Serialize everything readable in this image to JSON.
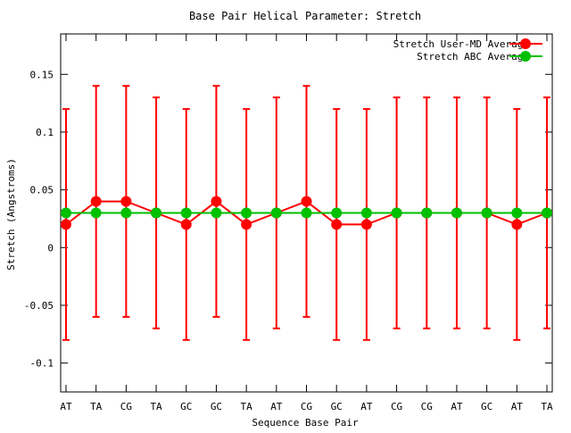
{
  "chart_data": {
    "type": "line",
    "title": "Base Pair Helical Parameter: Stretch",
    "xlabel": "Sequence Base Pair",
    "ylabel": "Stretch (Angstroms)",
    "categories": [
      "AT",
      "TA",
      "CG",
      "TA",
      "GC",
      "GC",
      "TA",
      "AT",
      "CG",
      "GC",
      "AT",
      "CG",
      "CG",
      "AT",
      "GC",
      "AT",
      "TA"
    ],
    "ylim": [
      -0.125,
      0.185
    ],
    "yticks": [
      -0.1,
      -0.05,
      0,
      0.05,
      0.1,
      0.15
    ],
    "ytick_labels": [
      "-0.1",
      "-0.05",
      "0",
      "0.05",
      "0.1",
      "0.15"
    ],
    "grid": false,
    "legend_position": "top-right",
    "series": [
      {
        "name": "Stretch User-MD Average",
        "color": "#ff0000",
        "values": [
          0.02,
          0.04,
          0.04,
          0.03,
          0.02,
          0.04,
          0.02,
          0.03,
          0.04,
          0.02,
          0.02,
          0.03,
          0.03,
          0.03,
          0.03,
          0.02,
          0.03
        ],
        "error_low": [
          -0.08,
          -0.06,
          -0.06,
          -0.07,
          -0.08,
          -0.06,
          -0.08,
          -0.07,
          -0.06,
          -0.08,
          -0.08,
          -0.07,
          -0.07,
          -0.07,
          -0.07,
          -0.08,
          -0.07
        ],
        "error_high": [
          0.12,
          0.14,
          0.14,
          0.13,
          0.12,
          0.14,
          0.12,
          0.13,
          0.14,
          0.12,
          0.12,
          0.13,
          0.13,
          0.13,
          0.13,
          0.12,
          0.13
        ]
      },
      {
        "name": "Stretch ABC Average",
        "color": "#00c000",
        "values": [
          0.03,
          0.03,
          0.03,
          0.03,
          0.03,
          0.03,
          0.03,
          0.03,
          0.03,
          0.03,
          0.03,
          0.03,
          0.03,
          0.03,
          0.03,
          0.03,
          0.03
        ]
      }
    ]
  }
}
